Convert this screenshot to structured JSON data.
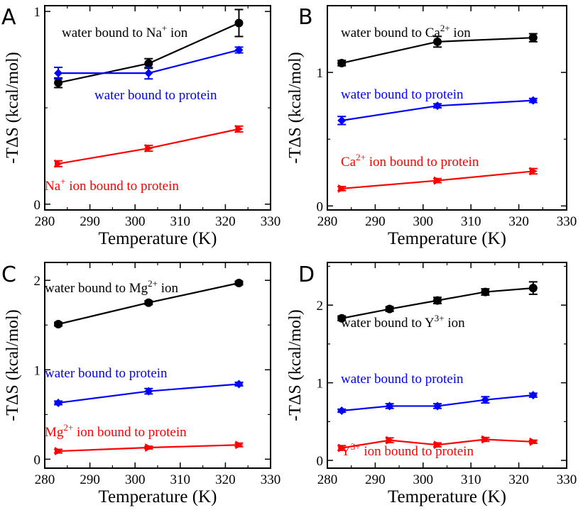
{
  "chart_data": [
    {
      "panel": "A",
      "type": "line",
      "xlabel": "Temperature (K)",
      "ylabel": "-TΔS (kcal/mol)",
      "xlim": [
        280,
        330
      ],
      "ylim": [
        -0.03,
        1.03
      ],
      "xticks": [
        280,
        290,
        300,
        310,
        320,
        330
      ],
      "yticks": [
        0,
        1
      ],
      "series": [
        {
          "name": "water bound to Na+ ion",
          "color": "#000000",
          "marker": "circle",
          "x": [
            283,
            303,
            323
          ],
          "values": [
            0.63,
            0.73,
            0.94
          ],
          "err": [
            0.025,
            0.025,
            0.07
          ]
        },
        {
          "name": "water bound to protein",
          "color": "#0000ff",
          "marker": "diamond",
          "x": [
            283,
            303,
            323
          ],
          "values": [
            0.68,
            0.68,
            0.8
          ],
          "err": [
            0.03,
            0.03,
            0.015
          ]
        },
        {
          "name": "Na+ ion bound to protein",
          "color": "#ff0000",
          "marker": "triangle",
          "x": [
            283,
            303,
            323
          ],
          "values": [
            0.21,
            0.29,
            0.39
          ],
          "err": [
            0.015,
            0.015,
            0.015
          ]
        }
      ],
      "annotations": [
        {
          "base": "water bound to Na",
          "sup": "+",
          "tail": " ion",
          "color": "#000000"
        },
        {
          "base": "water bound to protein",
          "sup": "",
          "tail": "",
          "color": "#0000ff"
        },
        {
          "base": "Na",
          "sup": "+",
          "tail": " ion bound to protein",
          "color": "#ff0000"
        }
      ]
    },
    {
      "panel": "B",
      "type": "line",
      "xlabel": "Temperature (K)",
      "ylabel": "-TΔS (kcal/mol)",
      "xlim": [
        280,
        330
      ],
      "ylim": [
        -0.03,
        1.5
      ],
      "xticks": [
        280,
        290,
        300,
        310,
        320,
        330
      ],
      "yticks": [
        0,
        1
      ],
      "series": [
        {
          "name": "water bound to Ca2+ ion",
          "color": "#000000",
          "marker": "circle",
          "x": [
            283,
            303,
            323
          ],
          "values": [
            1.07,
            1.23,
            1.26
          ],
          "err": [
            0.02,
            0.04,
            0.03
          ]
        },
        {
          "name": "water bound to protein",
          "color": "#0000ff",
          "marker": "diamond",
          "x": [
            283,
            303,
            323
          ],
          "values": [
            0.64,
            0.75,
            0.79
          ],
          "err": [
            0.03,
            0.015,
            0.015
          ]
        },
        {
          "name": "Ca2+ ion bound to protein",
          "color": "#ff0000",
          "marker": "triangle",
          "x": [
            283,
            303,
            323
          ],
          "values": [
            0.13,
            0.19,
            0.26
          ],
          "err": [
            0.015,
            0.015,
            0.02
          ]
        }
      ],
      "annotations": [
        {
          "base": "water bound to Ca",
          "sup": "2+",
          "tail": " ion",
          "color": "#000000"
        },
        {
          "base": "water bound to protein",
          "sup": "",
          "tail": "",
          "color": "#0000ff"
        },
        {
          "base": "Ca",
          "sup": "2+",
          "tail": " ion bound to protein",
          "color": "#ff0000"
        }
      ]
    },
    {
      "panel": "C",
      "type": "line",
      "xlabel": "Temperature (K)",
      "ylabel": "-TΔS (kcal/mol)",
      "xlim": [
        280,
        330
      ],
      "ylim": [
        -0.1,
        2.2
      ],
      "xticks": [
        280,
        290,
        300,
        310,
        320,
        330
      ],
      "yticks": [
        0,
        1,
        2
      ],
      "series": [
        {
          "name": "water bound to Mg2+ ion",
          "color": "#000000",
          "marker": "circle",
          "x": [
            283,
            303,
            323
          ],
          "values": [
            1.51,
            1.75,
            1.97
          ],
          "err": [
            0.02,
            0.02,
            0.02
          ]
        },
        {
          "name": "water bound to protein",
          "color": "#0000ff",
          "marker": "diamond",
          "x": [
            283,
            303,
            323
          ],
          "values": [
            0.63,
            0.76,
            0.84
          ],
          "err": [
            0.02,
            0.03,
            0.02
          ]
        },
        {
          "name": "Mg2+ ion bound to protein",
          "color": "#ff0000",
          "marker": "triangle",
          "x": [
            283,
            303,
            323
          ],
          "values": [
            0.09,
            0.13,
            0.16
          ],
          "err": [
            0.02,
            0.015,
            0.02
          ]
        }
      ],
      "annotations": [
        {
          "base": "water bound to Mg",
          "sup": "2+",
          "tail": " ion",
          "color": "#000000"
        },
        {
          "base": "water bound to protein",
          "sup": "",
          "tail": "",
          "color": "#0000ff"
        },
        {
          "base": "Mg",
          "sup": "2+",
          "tail": " ion bound to protein",
          "color": "#ff0000"
        }
      ]
    },
    {
      "panel": "D",
      "type": "line",
      "xlabel": "Temperature (K)",
      "ylabel": "-TΔS (kcal/mol)",
      "xlim": [
        280,
        330
      ],
      "ylim": [
        -0.1,
        2.55
      ],
      "xticks": [
        280,
        290,
        300,
        310,
        320,
        330
      ],
      "yticks": [
        0,
        1,
        2
      ],
      "series": [
        {
          "name": "water bound to Y3+ ion",
          "color": "#000000",
          "marker": "circle",
          "x": [
            283,
            293,
            303,
            313,
            323
          ],
          "values": [
            1.83,
            1.95,
            2.06,
            2.17,
            2.22
          ],
          "err": [
            0.03,
            0.03,
            0.04,
            0.04,
            0.08
          ]
        },
        {
          "name": "water bound to protein",
          "color": "#0000ff",
          "marker": "diamond",
          "x": [
            283,
            293,
            303,
            313,
            323
          ],
          "values": [
            0.64,
            0.7,
            0.7,
            0.78,
            0.84
          ],
          "err": [
            0.02,
            0.03,
            0.03,
            0.04,
            0.025
          ]
        },
        {
          "name": "Y3+ ion bound to protein",
          "color": "#ff0000",
          "marker": "triangle",
          "x": [
            283,
            293,
            303,
            313,
            323
          ],
          "values": [
            0.16,
            0.26,
            0.2,
            0.27,
            0.24
          ],
          "err": [
            0.03,
            0.03,
            0.025,
            0.025,
            0.02
          ]
        }
      ],
      "annotations": [
        {
          "base": "water bound to Y",
          "sup": "3+",
          "tail": " ion",
          "color": "#000000"
        },
        {
          "base": "water bound to protein",
          "sup": "",
          "tail": "",
          "color": "#0000ff"
        },
        {
          "base": "Y",
          "sup": "3+",
          "tail": " ion bound to protein",
          "color": "#ff0000"
        }
      ]
    }
  ]
}
